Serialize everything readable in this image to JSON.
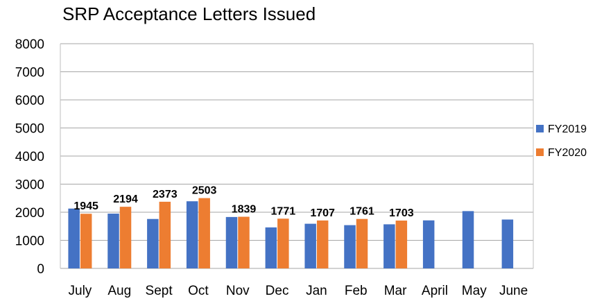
{
  "chart_data": {
    "type": "bar",
    "title": "SRP Acceptance Letters Issued",
    "xlabel": "",
    "ylabel": "",
    "ylim": [
      0,
      8000
    ],
    "yticks": [
      0,
      1000,
      2000,
      3000,
      4000,
      5000,
      6000,
      7000,
      8000
    ],
    "grid": true,
    "legend_position": "right",
    "categories": [
      "July",
      "Aug",
      "Sept",
      "Oct",
      "Nov",
      "Dec",
      "Jan",
      "Feb",
      "Mar",
      "April",
      "May",
      "June"
    ],
    "series": [
      {
        "name": "FY2019",
        "color": "#4472c4",
        "values": [
          2130,
          1950,
          1760,
          2390,
          1830,
          1460,
          1590,
          1540,
          1570,
          1710,
          2040,
          1740
        ],
        "show_labels": false
      },
      {
        "name": "FY2020",
        "color": "#ed7d31",
        "values": [
          1945,
          2194,
          2373,
          2503,
          1839,
          1771,
          1707,
          1761,
          1703,
          null,
          null,
          null
        ],
        "show_labels": true
      }
    ]
  }
}
